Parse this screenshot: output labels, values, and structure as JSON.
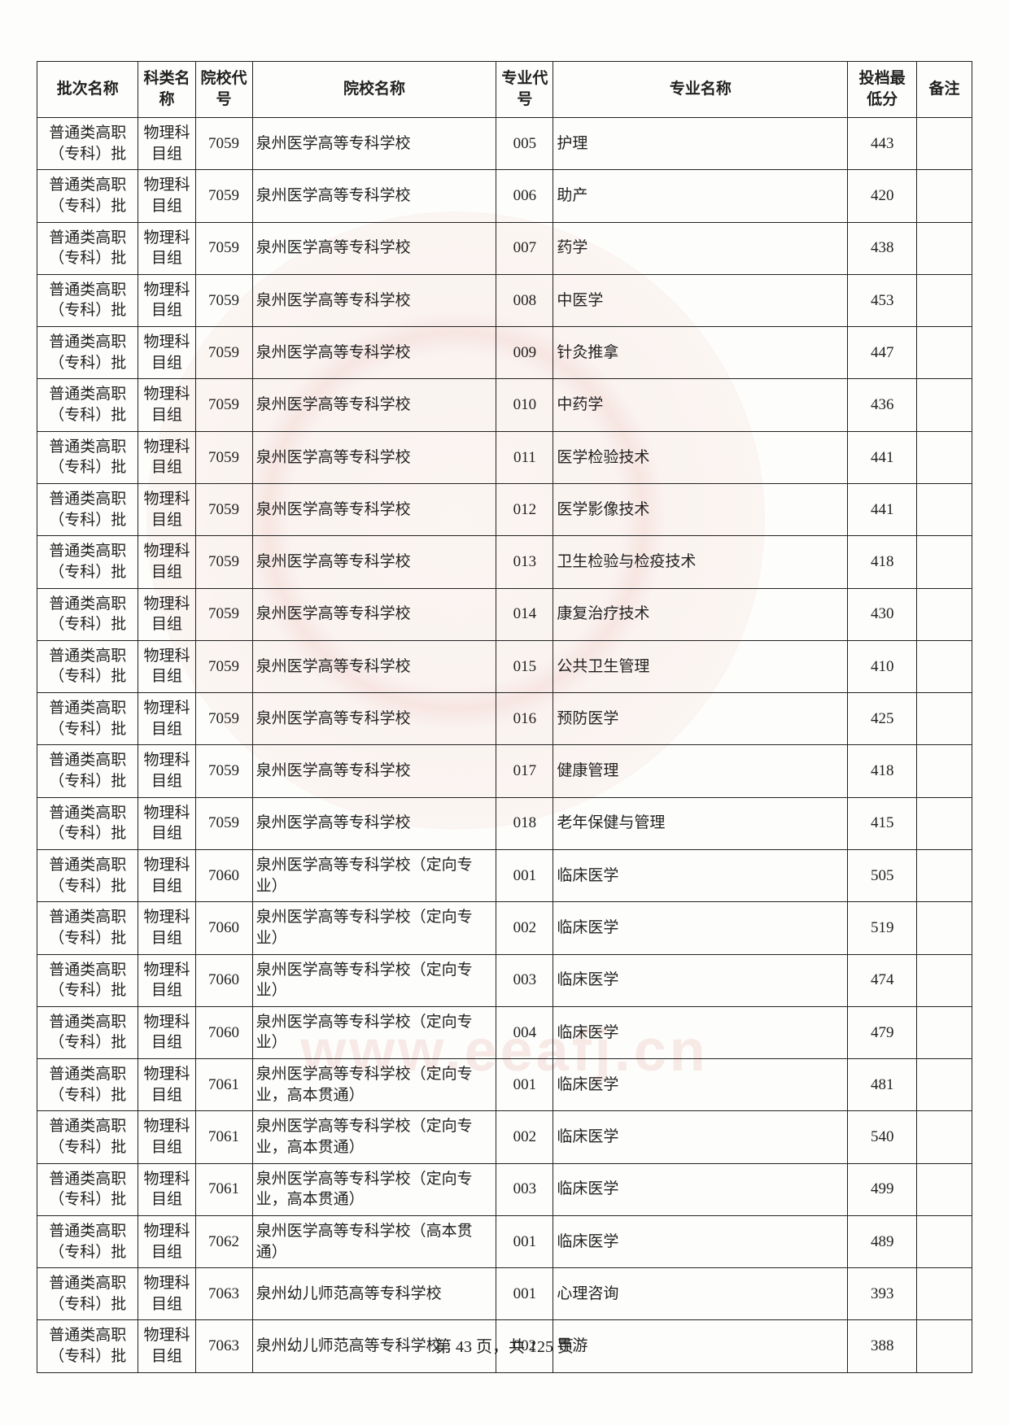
{
  "headers": {
    "batch": "批次名称",
    "subject": "科类名称",
    "school_code": "院校代号",
    "school_name": "院校名称",
    "major_code": "专业代号",
    "major_name": "专业名称",
    "score": "投档最低分",
    "remark": "备注"
  },
  "rows": [
    {
      "batch": "普通类高职（专科）批",
      "subject": "物理科目组",
      "scode": "7059",
      "sname": "泉州医学高等专科学校",
      "mcode": "005",
      "mname": "护理",
      "score": "443",
      "remark": ""
    },
    {
      "batch": "普通类高职（专科）批",
      "subject": "物理科目组",
      "scode": "7059",
      "sname": "泉州医学高等专科学校",
      "mcode": "006",
      "mname": "助产",
      "score": "420",
      "remark": ""
    },
    {
      "batch": "普通类高职（专科）批",
      "subject": "物理科目组",
      "scode": "7059",
      "sname": "泉州医学高等专科学校",
      "mcode": "007",
      "mname": "药学",
      "score": "438",
      "remark": ""
    },
    {
      "batch": "普通类高职（专科）批",
      "subject": "物理科目组",
      "scode": "7059",
      "sname": "泉州医学高等专科学校",
      "mcode": "008",
      "mname": "中医学",
      "score": "453",
      "remark": ""
    },
    {
      "batch": "普通类高职（专科）批",
      "subject": "物理科目组",
      "scode": "7059",
      "sname": "泉州医学高等专科学校",
      "mcode": "009",
      "mname": "针灸推拿",
      "score": "447",
      "remark": ""
    },
    {
      "batch": "普通类高职（专科）批",
      "subject": "物理科目组",
      "scode": "7059",
      "sname": "泉州医学高等专科学校",
      "mcode": "010",
      "mname": "中药学",
      "score": "436",
      "remark": ""
    },
    {
      "batch": "普通类高职（专科）批",
      "subject": "物理科目组",
      "scode": "7059",
      "sname": "泉州医学高等专科学校",
      "mcode": "011",
      "mname": "医学检验技术",
      "score": "441",
      "remark": ""
    },
    {
      "batch": "普通类高职（专科）批",
      "subject": "物理科目组",
      "scode": "7059",
      "sname": "泉州医学高等专科学校",
      "mcode": "012",
      "mname": "医学影像技术",
      "score": "441",
      "remark": ""
    },
    {
      "batch": "普通类高职（专科）批",
      "subject": "物理科目组",
      "scode": "7059",
      "sname": "泉州医学高等专科学校",
      "mcode": "013",
      "mname": "卫生检验与检疫技术",
      "score": "418",
      "remark": ""
    },
    {
      "batch": "普通类高职（专科）批",
      "subject": "物理科目组",
      "scode": "7059",
      "sname": "泉州医学高等专科学校",
      "mcode": "014",
      "mname": "康复治疗技术",
      "score": "430",
      "remark": ""
    },
    {
      "batch": "普通类高职（专科）批",
      "subject": "物理科目组",
      "scode": "7059",
      "sname": "泉州医学高等专科学校",
      "mcode": "015",
      "mname": "公共卫生管理",
      "score": "410",
      "remark": ""
    },
    {
      "batch": "普通类高职（专科）批",
      "subject": "物理科目组",
      "scode": "7059",
      "sname": "泉州医学高等专科学校",
      "mcode": "016",
      "mname": "预防医学",
      "score": "425",
      "remark": ""
    },
    {
      "batch": "普通类高职（专科）批",
      "subject": "物理科目组",
      "scode": "7059",
      "sname": "泉州医学高等专科学校",
      "mcode": "017",
      "mname": "健康管理",
      "score": "418",
      "remark": ""
    },
    {
      "batch": "普通类高职（专科）批",
      "subject": "物理科目组",
      "scode": "7059",
      "sname": "泉州医学高等专科学校",
      "mcode": "018",
      "mname": "老年保健与管理",
      "score": "415",
      "remark": ""
    },
    {
      "batch": "普通类高职（专科）批",
      "subject": "物理科目组",
      "scode": "7060",
      "sname": "泉州医学高等专科学校（定向专业）",
      "mcode": "001",
      "mname": "临床医学",
      "score": "505",
      "remark": ""
    },
    {
      "batch": "普通类高职（专科）批",
      "subject": "物理科目组",
      "scode": "7060",
      "sname": "泉州医学高等专科学校（定向专业）",
      "mcode": "002",
      "mname": "临床医学",
      "score": "519",
      "remark": ""
    },
    {
      "batch": "普通类高职（专科）批",
      "subject": "物理科目组",
      "scode": "7060",
      "sname": "泉州医学高等专科学校（定向专业）",
      "mcode": "003",
      "mname": "临床医学",
      "score": "474",
      "remark": ""
    },
    {
      "batch": "普通类高职（专科）批",
      "subject": "物理科目组",
      "scode": "7060",
      "sname": "泉州医学高等专科学校（定向专业）",
      "mcode": "004",
      "mname": "临床医学",
      "score": "479",
      "remark": ""
    },
    {
      "batch": "普通类高职（专科）批",
      "subject": "物理科目组",
      "scode": "7061",
      "sname": "泉州医学高等专科学校（定向专业，高本贯通）",
      "mcode": "001",
      "mname": "临床医学",
      "score": "481",
      "remark": ""
    },
    {
      "batch": "普通类高职（专科）批",
      "subject": "物理科目组",
      "scode": "7061",
      "sname": "泉州医学高等专科学校（定向专业，高本贯通）",
      "mcode": "002",
      "mname": "临床医学",
      "score": "540",
      "remark": ""
    },
    {
      "batch": "普通类高职（专科）批",
      "subject": "物理科目组",
      "scode": "7061",
      "sname": "泉州医学高等专科学校（定向专业，高本贯通）",
      "mcode": "003",
      "mname": "临床医学",
      "score": "499",
      "remark": ""
    },
    {
      "batch": "普通类高职（专科）批",
      "subject": "物理科目组",
      "scode": "7062",
      "sname": "泉州医学高等专科学校（高本贯通）",
      "mcode": "001",
      "mname": "临床医学",
      "score": "489",
      "remark": ""
    },
    {
      "batch": "普通类高职（专科）批",
      "subject": "物理科目组",
      "scode": "7063",
      "sname": "泉州幼儿师范高等专科学校",
      "mcode": "001",
      "mname": "心理咨询",
      "score": "393",
      "remark": ""
    },
    {
      "batch": "普通类高职（专科）批",
      "subject": "物理科目组",
      "scode": "7063",
      "sname": "泉州幼儿师范高等专科学校",
      "mcode": "002",
      "mname": "导游",
      "score": "388",
      "remark": ""
    }
  ],
  "watermark_url": "www.eeafj.cn",
  "page_info": {
    "prefix": "第 ",
    "current": "43",
    "mid": " 页，共 ",
    "total": "125",
    "suffix": " 页"
  }
}
